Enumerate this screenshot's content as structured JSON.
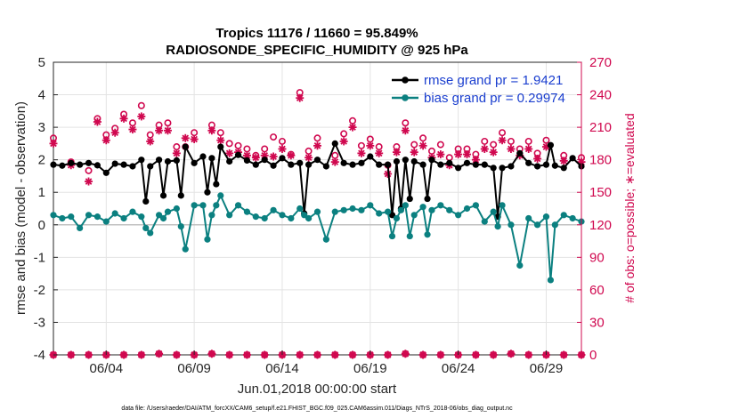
{
  "chart_data": {
    "type": "line",
    "title": "Tropics 11176 / 11660 = 95.849%",
    "subtitle": "RADIOSONDE_SPECIFIC_HUMIDITY @ 925 hPa",
    "xlabel": "Jun.01,2018 00:00:00 start",
    "ylabel": "rmse and bias (model - observation)",
    "y2label": "# of obs: o=possible; ∗=evaluated",
    "footer": "data file: /Users/raeder/DAI/ATM_forcXX/CAM6_setup/f.e21.FHIST_BGC.f09_025.CAM6assim.011/Diags_NTrS_2018-06/obs_diag_output.nc",
    "xlim": [
      1.0,
      31.0
    ],
    "ylim": [
      -4,
      5
    ],
    "y2lim": [
      0,
      270
    ],
    "x_tick_values": [
      4,
      9,
      14,
      19,
      24,
      29
    ],
    "x_tick_labels": [
      "06/04",
      "06/09",
      "06/14",
      "06/19",
      "06/24",
      "06/29"
    ],
    "y_tick_values": [
      -4,
      -3,
      -2,
      -1,
      0,
      1,
      2,
      3,
      4,
      5
    ],
    "y_tick_labels": [
      "-4",
      "-3",
      "-2",
      "-1",
      "0",
      "1",
      "2",
      "3",
      "4",
      "5"
    ],
    "y2_tick_values": [
      0,
      30,
      60,
      90,
      120,
      150,
      180,
      210,
      240,
      270
    ],
    "y2_tick_labels": [
      "0",
      "30",
      "60",
      "90",
      "120",
      "150",
      "180",
      "210",
      "240",
      "270"
    ],
    "grid": true,
    "legend_location": "top-right",
    "colors": {
      "rmse": "#000000",
      "bias": "#0b8080",
      "obs": "#d0084f",
      "legend_text": "#1a3ecf",
      "grid": "#e3e3e3",
      "zero_line": "#c0c0c0"
    },
    "series": [
      {
        "name": "rmse grand pr = 1.9421",
        "axis": "left",
        "style": "line+markers",
        "points": [
          [
            1.0,
            1.85
          ],
          [
            1.5,
            1.82
          ],
          [
            2.0,
            1.9
          ],
          [
            2.5,
            1.85
          ],
          [
            3.0,
            1.9
          ],
          [
            3.5,
            1.83
          ],
          [
            4.0,
            1.6
          ],
          [
            4.5,
            1.88
          ],
          [
            5.0,
            1.85
          ],
          [
            5.5,
            1.8
          ],
          [
            6.0,
            2.0
          ],
          [
            6.25,
            0.72
          ],
          [
            6.5,
            1.8
          ],
          [
            7.0,
            2.0
          ],
          [
            7.25,
            0.9
          ],
          [
            7.5,
            1.95
          ],
          [
            8.0,
            1.98
          ],
          [
            8.25,
            0.9
          ],
          [
            8.5,
            2.4
          ],
          [
            9.0,
            1.9
          ],
          [
            9.5,
            2.1
          ],
          [
            9.75,
            1.0
          ],
          [
            10.0,
            2.05
          ],
          [
            10.25,
            1.25
          ],
          [
            10.5,
            2.4
          ],
          [
            11.0,
            1.95
          ],
          [
            11.5,
            2.15
          ],
          [
            12.0,
            1.98
          ],
          [
            12.5,
            1.85
          ],
          [
            13.0,
            2.0
          ],
          [
            13.5,
            1.82
          ],
          [
            14.0,
            2.05
          ],
          [
            14.5,
            1.85
          ],
          [
            15.0,
            1.9
          ],
          [
            15.25,
            0.35
          ],
          [
            15.5,
            1.85
          ],
          [
            16.0,
            2.0
          ],
          [
            16.5,
            1.8
          ],
          [
            17.0,
            2.5
          ],
          [
            17.5,
            1.9
          ],
          [
            18.0,
            1.85
          ],
          [
            18.5,
            1.9
          ],
          [
            19.0,
            2.1
          ],
          [
            19.5,
            1.85
          ],
          [
            20.0,
            1.85
          ],
          [
            20.25,
            0.3
          ],
          [
            20.5,
            1.95
          ],
          [
            20.75,
            0.5
          ],
          [
            21.0,
            2.0
          ],
          [
            21.25,
            0.8
          ],
          [
            21.5,
            1.95
          ],
          [
            22.0,
            1.85
          ],
          [
            22.25,
            0.8
          ],
          [
            22.5,
            2.0
          ],
          [
            23.0,
            1.85
          ],
          [
            23.5,
            1.9
          ],
          [
            24.0,
            1.75
          ],
          [
            24.5,
            1.9
          ],
          [
            25.0,
            1.85
          ],
          [
            25.5,
            1.85
          ],
          [
            26.0,
            1.75
          ],
          [
            26.25,
            0.25
          ],
          [
            26.5,
            1.75
          ],
          [
            27.0,
            1.8
          ],
          [
            27.5,
            2.2
          ],
          [
            28.0,
            1.9
          ],
          [
            28.5,
            1.8
          ],
          [
            29.0,
            1.85
          ],
          [
            29.25,
            2.45
          ],
          [
            29.5,
            1.82
          ],
          [
            30.0,
            1.75
          ],
          [
            30.5,
            2.05
          ],
          [
            31.0,
            1.8
          ]
        ]
      },
      {
        "name": "bias grand pr = 0.29974",
        "axis": "left",
        "style": "line+markers",
        "points": [
          [
            1.0,
            0.3
          ],
          [
            1.5,
            0.2
          ],
          [
            2.0,
            0.25
          ],
          [
            2.5,
            -0.1
          ],
          [
            3.0,
            0.3
          ],
          [
            3.5,
            0.25
          ],
          [
            4.0,
            0.1
          ],
          [
            4.5,
            0.35
          ],
          [
            5.0,
            0.2
          ],
          [
            5.5,
            0.4
          ],
          [
            6.0,
            0.25
          ],
          [
            6.25,
            -0.1
          ],
          [
            6.5,
            -0.25
          ],
          [
            7.0,
            0.3
          ],
          [
            7.25,
            0.2
          ],
          [
            7.5,
            0.4
          ],
          [
            8.0,
            0.5
          ],
          [
            8.25,
            -0.05
          ],
          [
            8.5,
            -0.75
          ],
          [
            9.0,
            0.6
          ],
          [
            9.5,
            0.6
          ],
          [
            9.75,
            -0.45
          ],
          [
            10.0,
            0.3
          ],
          [
            10.25,
            0.6
          ],
          [
            10.5,
            0.9
          ],
          [
            11.0,
            0.3
          ],
          [
            11.5,
            0.6
          ],
          [
            12.0,
            0.4
          ],
          [
            12.5,
            0.25
          ],
          [
            13.0,
            0.2
          ],
          [
            13.5,
            0.45
          ],
          [
            14.0,
            0.3
          ],
          [
            14.5,
            0.2
          ],
          [
            15.0,
            0.5
          ],
          [
            15.25,
            0.3
          ],
          [
            15.5,
            0.2
          ],
          [
            16.0,
            0.4
          ],
          [
            16.5,
            -0.45
          ],
          [
            17.0,
            0.4
          ],
          [
            17.5,
            0.45
          ],
          [
            18.0,
            0.5
          ],
          [
            18.5,
            0.45
          ],
          [
            19.0,
            0.6
          ],
          [
            19.5,
            0.35
          ],
          [
            20.0,
            0.4
          ],
          [
            20.25,
            -0.35
          ],
          [
            20.5,
            0.2
          ],
          [
            20.75,
            0.45
          ],
          [
            21.0,
            0.6
          ],
          [
            21.25,
            -0.35
          ],
          [
            21.5,
            0.3
          ],
          [
            22.0,
            0.55
          ],
          [
            22.25,
            -0.3
          ],
          [
            22.5,
            0.45
          ],
          [
            23.0,
            0.6
          ],
          [
            23.5,
            0.45
          ],
          [
            24.0,
            0.3
          ],
          [
            24.5,
            0.5
          ],
          [
            25.0,
            0.6
          ],
          [
            25.5,
            0.1
          ],
          [
            26.0,
            0.4
          ],
          [
            26.25,
            -0.05
          ],
          [
            26.5,
            0.6
          ],
          [
            27.0,
            0.0
          ],
          [
            27.5,
            -1.25
          ],
          [
            28.0,
            0.2
          ],
          [
            28.5,
            0.0
          ],
          [
            29.0,
            0.25
          ],
          [
            29.25,
            -1.7
          ],
          [
            29.5,
            0.0
          ],
          [
            30.0,
            0.3
          ],
          [
            30.5,
            0.2
          ],
          [
            31.0,
            0.1
          ]
        ]
      },
      {
        "name": "obs possible",
        "axis": "right",
        "style": "o",
        "points": [
          [
            1,
            200
          ],
          [
            2,
            178
          ],
          [
            3,
            170
          ],
          [
            3.5,
            218
          ],
          [
            4,
            203
          ],
          [
            4.5,
            209
          ],
          [
            5,
            222
          ],
          [
            5.5,
            214
          ],
          [
            6,
            230
          ],
          [
            6.5,
            203
          ],
          [
            7,
            212
          ],
          [
            7.5,
            214
          ],
          [
            8,
            192
          ],
          [
            8.5,
            192
          ],
          [
            9,
            205
          ],
          [
            10,
            212
          ],
          [
            10.5,
            205
          ],
          [
            11,
            195
          ],
          [
            11.5,
            193
          ],
          [
            12,
            190
          ],
          [
            12.5,
            184
          ],
          [
            13,
            190
          ],
          [
            13.5,
            201
          ],
          [
            14,
            197
          ],
          [
            14.5,
            185
          ],
          [
            15,
            242
          ],
          [
            15.5,
            188
          ],
          [
            16,
            200
          ],
          [
            17,
            184
          ],
          [
            17.5,
            204
          ],
          [
            18,
            216
          ],
          [
            18.5,
            193
          ],
          [
            19,
            199
          ],
          [
            19.5,
            192
          ],
          [
            20,
            175
          ],
          [
            20.5,
            192
          ],
          [
            21,
            214
          ],
          [
            21.5,
            194
          ],
          [
            22,
            200
          ],
          [
            22.5,
            188
          ],
          [
            23,
            194
          ],
          [
            23.5,
            182
          ],
          [
            24,
            190
          ],
          [
            24.5,
            190
          ],
          [
            25,
            185
          ],
          [
            25.5,
            197
          ],
          [
            26,
            194
          ],
          [
            26.5,
            205
          ],
          [
            27,
            197
          ],
          [
            27.5,
            190
          ],
          [
            28,
            197
          ],
          [
            28.5,
            186
          ],
          [
            29,
            198
          ],
          [
            30,
            184
          ],
          [
            31,
            182
          ]
        ]
      },
      {
        "name": "obs evaluated",
        "axis": "right",
        "style": "*",
        "points": [
          [
            1,
            195
          ],
          [
            2,
            175
          ],
          [
            3,
            160
          ],
          [
            3.5,
            215
          ],
          [
            4,
            198
          ],
          [
            4.5,
            205
          ],
          [
            5,
            218
          ],
          [
            5.5,
            208
          ],
          [
            6,
            220
          ],
          [
            6.5,
            197
          ],
          [
            7,
            207
          ],
          [
            7.5,
            207
          ],
          [
            8,
            186
          ],
          [
            8.5,
            200
          ],
          [
            9,
            199
          ],
          [
            10,
            207
          ],
          [
            10.5,
            198
          ],
          [
            11,
            186
          ],
          [
            11.5,
            187
          ],
          [
            12,
            184
          ],
          [
            12.5,
            182
          ],
          [
            13,
            184
          ],
          [
            13.5,
            183
          ],
          [
            14,
            190
          ],
          [
            14.5,
            184
          ],
          [
            15,
            237
          ],
          [
            15.5,
            182
          ],
          [
            16,
            193
          ],
          [
            17,
            178
          ],
          [
            17.5,
            197
          ],
          [
            18,
            210
          ],
          [
            18.5,
            186
          ],
          [
            19,
            193
          ],
          [
            19.5,
            186
          ],
          [
            20,
            167
          ],
          [
            20.5,
            187
          ],
          [
            21,
            207
          ],
          [
            21.5,
            187
          ],
          [
            22,
            193
          ],
          [
            22.5,
            182
          ],
          [
            23,
            185
          ],
          [
            23.5,
            175
          ],
          [
            24,
            185
          ],
          [
            24.5,
            185
          ],
          [
            25,
            180
          ],
          [
            25.5,
            190
          ],
          [
            26,
            187
          ],
          [
            26.5,
            198
          ],
          [
            27,
            190
          ],
          [
            27.5,
            184
          ],
          [
            28,
            190
          ],
          [
            28.5,
            181
          ],
          [
            29,
            192
          ],
          [
            30,
            179
          ],
          [
            31,
            178
          ]
        ]
      },
      {
        "name": "obs bottom",
        "axis": "right",
        "style": "o*",
        "points": [
          [
            1,
            0
          ],
          [
            2,
            0
          ],
          [
            3,
            0
          ],
          [
            4,
            0
          ],
          [
            5,
            0
          ],
          [
            6,
            0
          ],
          [
            7,
            1
          ],
          [
            8,
            0
          ],
          [
            9,
            0
          ],
          [
            10,
            1
          ],
          [
            11,
            0
          ],
          [
            12,
            0
          ],
          [
            13,
            0
          ],
          [
            14,
            0
          ],
          [
            15,
            0
          ],
          [
            16,
            0
          ],
          [
            17,
            0
          ],
          [
            18,
            0
          ],
          [
            19,
            0
          ],
          [
            20,
            0
          ],
          [
            21,
            1
          ],
          [
            22,
            0
          ],
          [
            23,
            0
          ],
          [
            24,
            0
          ],
          [
            25,
            0
          ],
          [
            26,
            0
          ],
          [
            27,
            1
          ],
          [
            28,
            0
          ],
          [
            29,
            0
          ],
          [
            30,
            0
          ],
          [
            31,
            0
          ]
        ]
      }
    ]
  }
}
